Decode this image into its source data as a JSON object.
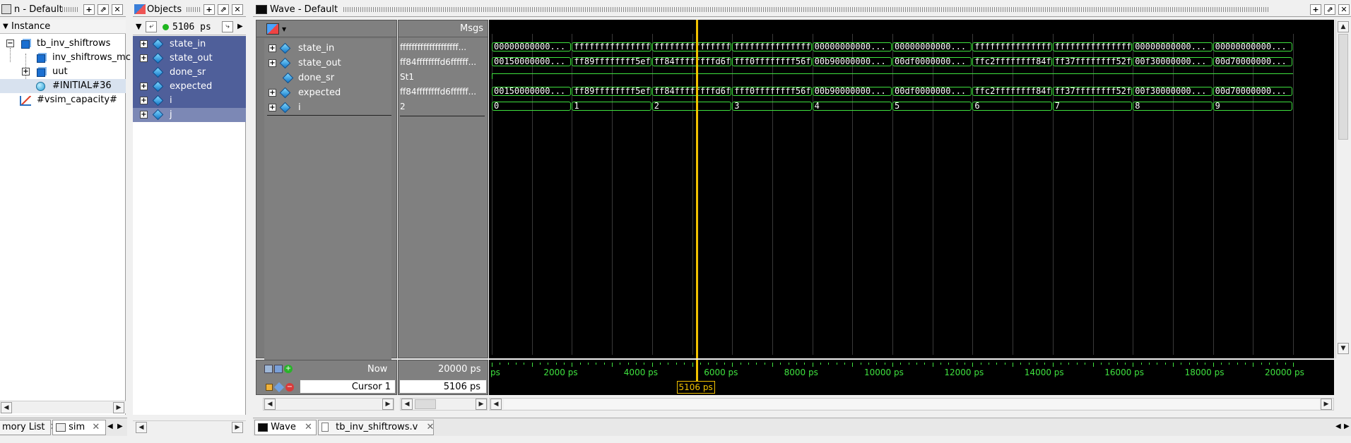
{
  "instance_panel": {
    "title": "n - Default",
    "header": "Instance",
    "tree": [
      {
        "label": "tb_inv_shiftrows",
        "expander": "-"
      },
      {
        "label": "inv_shiftrows_mc",
        "expander": ""
      },
      {
        "label": "uut",
        "expander": "+"
      },
      {
        "label": "#INITIAL#36",
        "expander": ""
      },
      {
        "label": "#vsim_capacity#",
        "expander": ""
      }
    ]
  },
  "objects_panel": {
    "title": "Objects",
    "time_value": "5106 ps",
    "items": [
      {
        "label": "state_in"
      },
      {
        "label": "state_out"
      },
      {
        "label": "done_sr"
      },
      {
        "label": "expected"
      },
      {
        "label": "i"
      },
      {
        "label": "j"
      }
    ]
  },
  "wave_panel": {
    "title": "Wave - Default",
    "msgs_header": "Msgs",
    "signals": [
      {
        "name": "state_in",
        "msg": "ffffffffffffffffffff..."
      },
      {
        "name": "state_out",
        "msg": "ff84ffffffffd6ffffff..."
      },
      {
        "name": "done_sr",
        "msg": "St1"
      },
      {
        "name": "expected",
        "msg": "ff84ffffffffd6ffffff..."
      },
      {
        "name": "i",
        "msg": "2"
      }
    ],
    "waves": {
      "state_in": [
        "00000000000...",
        "ffffffffffffffffff...",
        "ffffffffffffffffff...",
        "ffffffffffffffffff...",
        "00000000000...",
        "00000000000...",
        "ffffffffffffffffff...",
        "ffffffffffffffffff...",
        "00000000000...",
        "00000000000..."
      ],
      "state_out": [
        "00150000000...",
        "ff89ffffffff5ef...",
        "ff84ffffffffd6f...",
        "fff0ffffffff56f...",
        "00b90000000...",
        "00df0000000...",
        "ffc2ffffffff84f...",
        "ff37ffffffff52f...",
        "00f30000000...",
        "00d70000000..."
      ],
      "expected": [
        "00150000000...",
        "ff89ffffffff5ef...",
        "ff84ffffffffd6f...",
        "fff0ffffffff56f...",
        "00b90000000...",
        "00df0000000...",
        "ffc2ffffffff84f...",
        "ff37ffffffff52f...",
        "00f30000000...",
        "00d70000000..."
      ],
      "i": [
        "0",
        "1",
        "2",
        "3",
        "4",
        "5",
        "6",
        "7",
        "8",
        "9"
      ]
    },
    "now_label": "Now",
    "now_value": "20000 ps",
    "cursor_label": "Cursor 1",
    "cursor_value": "5106 ps",
    "cursor_flag": "5106 ps",
    "time_ticks": [
      "ps",
      "2000 ps",
      "4000 ps",
      "6000 ps",
      "8000 ps",
      "10000 ps",
      "12000 ps",
      "14000 ps",
      "16000 ps",
      "18000 ps",
      "20000 ps"
    ],
    "colors": {
      "wave": "#3fe23f",
      "cursor": "#f2c200",
      "background": "#000000"
    }
  },
  "bottom_tabs": {
    "left": [
      {
        "label": "mory List"
      },
      {
        "label": "sim"
      }
    ],
    "right": [
      {
        "label": "Wave"
      },
      {
        "label": "tb_inv_shiftrows.v"
      }
    ]
  }
}
